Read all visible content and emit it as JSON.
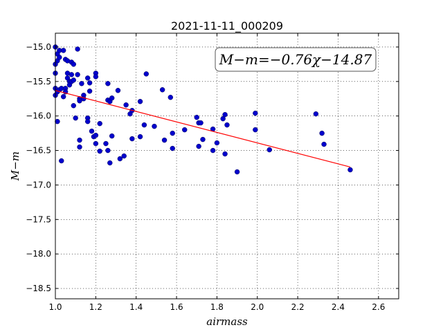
{
  "chart_data": {
    "type": "scatter",
    "title": "2021-11-11_000209",
    "xlabel": "airmass",
    "ylabel": "M−m",
    "xlim": [
      1.0,
      2.7
    ],
    "ylim": [
      -18.65,
      -14.8
    ],
    "x_ticks": [
      1.0,
      1.2,
      1.4,
      1.6,
      1.8,
      2.0,
      2.2,
      2.4,
      2.6
    ],
    "x_tick_labels": [
      "1.0",
      "1.2",
      "1.4",
      "1.6",
      "1.8",
      "2.0",
      "2.2",
      "2.4",
      "2.6"
    ],
    "y_ticks": [
      -15.0,
      -15.5,
      -16.0,
      -16.5,
      -17.0,
      -17.5,
      -18.0,
      -18.5
    ],
    "y_tick_labels": [
      "−15.0",
      "−15.5",
      "−16.0",
      "−16.5",
      "−17.0",
      "−17.5",
      "−18.0",
      "−18.5"
    ],
    "grid": true,
    "annotation": "M−m=−0.76χ−14.87",
    "fit": {
      "slope": -0.76,
      "intercept": -14.87,
      "x_range": [
        1.0,
        2.46
      ],
      "color": "#ff0000"
    },
    "point_color": "#0000cc",
    "series": [
      {
        "points": [
          [
            1.0,
            -15.0
          ],
          [
            1.01,
            -15.1
          ],
          [
            1.01,
            -15.2
          ],
          [
            1.0,
            -15.25
          ],
          [
            1.02,
            -15.05
          ],
          [
            1.02,
            -15.15
          ],
          [
            1.0,
            -15.38
          ],
          [
            1.0,
            -15.6
          ],
          [
            1.01,
            -15.65
          ],
          [
            1.0,
            -15.7
          ],
          [
            1.01,
            -16.08
          ],
          [
            1.02,
            -15.62
          ],
          [
            1.03,
            -15.6
          ],
          [
            1.03,
            -16.65
          ],
          [
            1.04,
            -15.05
          ],
          [
            1.05,
            -15.18
          ],
          [
            1.04,
            -15.72
          ],
          [
            1.05,
            -15.6
          ],
          [
            1.05,
            -15.65
          ],
          [
            1.06,
            -15.2
          ],
          [
            1.06,
            -15.38
          ],
          [
            1.06,
            -15.45
          ],
          [
            1.07,
            -15.5
          ],
          [
            1.07,
            -15.55
          ],
          [
            1.08,
            -15.22
          ],
          [
            1.08,
            -15.4
          ],
          [
            1.08,
            -15.5
          ],
          [
            1.09,
            -15.25
          ],
          [
            1.09,
            -15.48
          ],
          [
            1.09,
            -15.85
          ],
          [
            1.1,
            -16.03
          ],
          [
            1.11,
            -15.03
          ],
          [
            1.11,
            -15.4
          ],
          [
            1.12,
            -15.75
          ],
          [
            1.12,
            -15.78
          ],
          [
            1.12,
            -16.35
          ],
          [
            1.12,
            -16.45
          ],
          [
            1.13,
            -15.53
          ],
          [
            1.14,
            -15.7
          ],
          [
            1.14,
            -15.75
          ],
          [
            1.16,
            -15.45
          ],
          [
            1.16,
            -16.03
          ],
          [
            1.16,
            -16.08
          ],
          [
            1.17,
            -15.52
          ],
          [
            1.17,
            -15.64
          ],
          [
            1.18,
            -16.22
          ],
          [
            1.19,
            -16.3
          ],
          [
            1.2,
            -15.38
          ],
          [
            1.2,
            -15.43
          ],
          [
            1.2,
            -16.28
          ],
          [
            1.2,
            -16.4
          ],
          [
            1.22,
            -16.11
          ],
          [
            1.22,
            -16.51
          ],
          [
            1.25,
            -16.4
          ],
          [
            1.26,
            -15.53
          ],
          [
            1.26,
            -15.77
          ],
          [
            1.26,
            -16.5
          ],
          [
            1.27,
            -15.79
          ],
          [
            1.27,
            -16.68
          ],
          [
            1.28,
            -15.74
          ],
          [
            1.28,
            -16.29
          ],
          [
            1.31,
            -15.63
          ],
          [
            1.32,
            -16.62
          ],
          [
            1.34,
            -16.58
          ],
          [
            1.35,
            -15.84
          ],
          [
            1.37,
            -15.97
          ],
          [
            1.38,
            -15.92
          ],
          [
            1.38,
            -16.33
          ],
          [
            1.42,
            -16.3
          ],
          [
            1.42,
            -15.79
          ],
          [
            1.44,
            -16.13
          ],
          [
            1.45,
            -15.39
          ],
          [
            1.49,
            -16.15
          ],
          [
            1.53,
            -15.62
          ],
          [
            1.54,
            -16.35
          ],
          [
            1.57,
            -15.73
          ],
          [
            1.58,
            -16.25
          ],
          [
            1.58,
            -16.47
          ],
          [
            1.64,
            -16.2
          ],
          [
            1.7,
            -16.02
          ],
          [
            1.71,
            -16.1
          ],
          [
            1.71,
            -16.44
          ],
          [
            1.72,
            -16.1
          ],
          [
            1.73,
            -16.34
          ],
          [
            1.78,
            -16.19
          ],
          [
            1.78,
            -16.5
          ],
          [
            1.8,
            -16.39
          ],
          [
            1.83,
            -16.04
          ],
          [
            1.84,
            -15.98
          ],
          [
            1.84,
            -16.55
          ],
          [
            1.85,
            -16.13
          ],
          [
            1.9,
            -16.81
          ],
          [
            1.99,
            -15.96
          ],
          [
            1.99,
            -16.2
          ],
          [
            2.06,
            -16.49
          ],
          [
            2.29,
            -15.97
          ],
          [
            2.32,
            -16.25
          ],
          [
            2.33,
            -16.41
          ],
          [
            2.46,
            -16.78
          ]
        ]
      }
    ]
  }
}
